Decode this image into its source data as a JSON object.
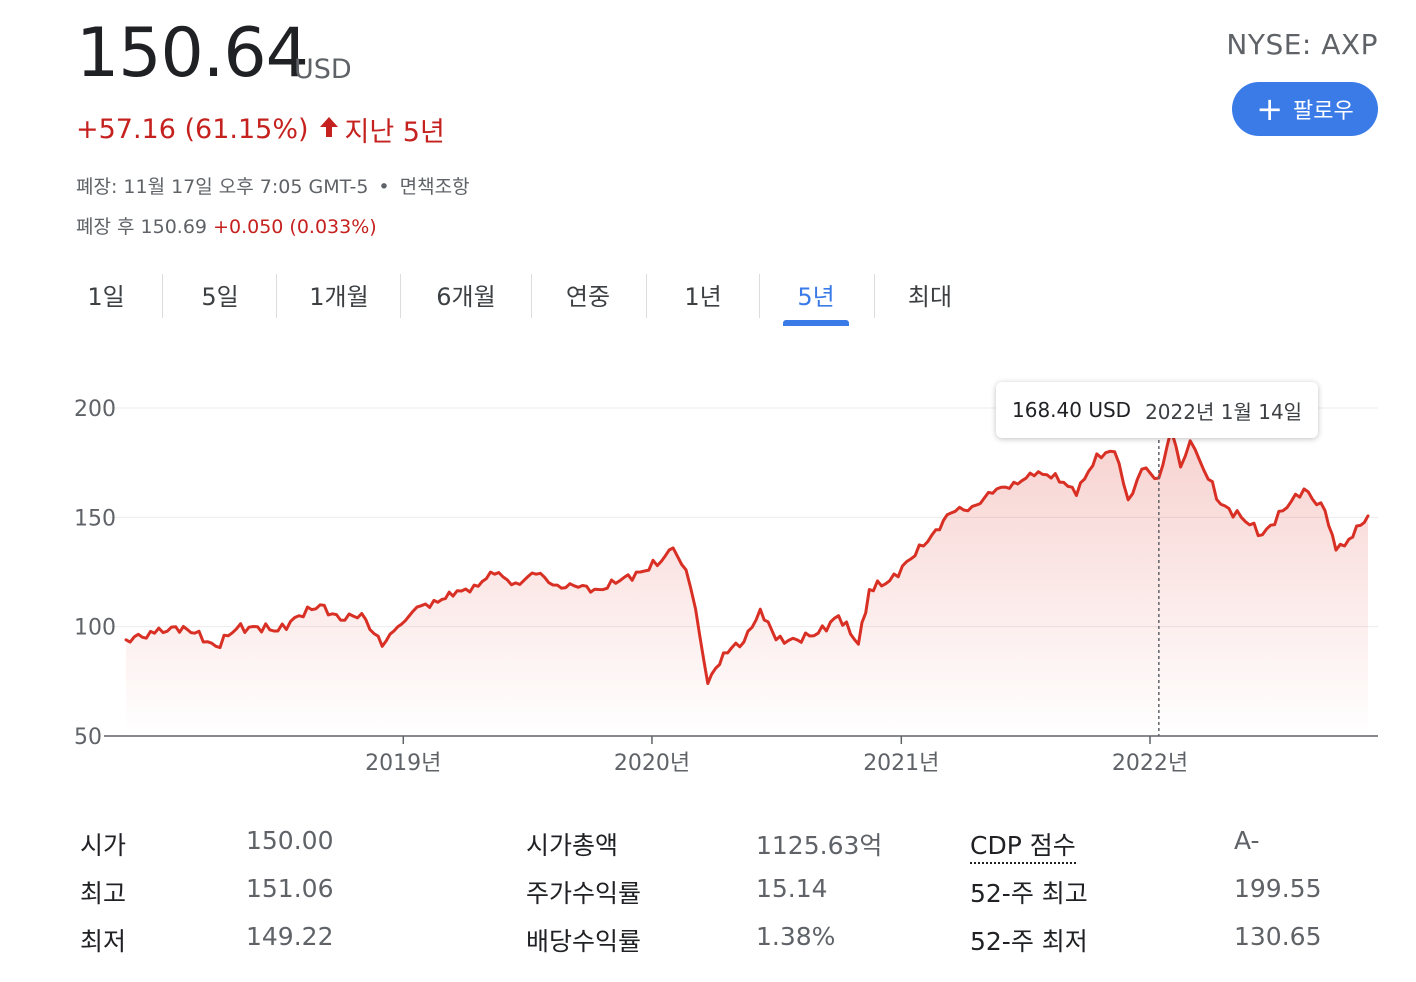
{
  "header": {
    "price": "150.64",
    "currency": "USD",
    "exchange_ticker": "NYSE: AXP",
    "follow_label": "팔로우",
    "change_text": "+57.16 (61.15%)",
    "change_period": "지난 5년",
    "close_info": "폐장: 11월 17일 오후 7:05 GMT-5",
    "disclaimer": "면책조항",
    "after_hours_label": "폐장 후 150.69",
    "after_hours_change": "+0.050 (0.033%)"
  },
  "tabs": [
    {
      "label": "1일"
    },
    {
      "label": "5일"
    },
    {
      "label": "1개월"
    },
    {
      "label": "6개월"
    },
    {
      "label": "연중"
    },
    {
      "label": "1년"
    },
    {
      "label": "5년",
      "active": true
    },
    {
      "label": "최대"
    }
  ],
  "tooltip": {
    "price": "168.40 USD",
    "date": "2022년 1월 14일"
  },
  "chart_data": {
    "type": "area",
    "y_ticks": [
      "200",
      "150",
      "100",
      "50"
    ],
    "x_ticks": [
      "2019년",
      "2020년",
      "2021년",
      "2022년"
    ],
    "ylim": [
      50,
      200
    ],
    "x": [
      "2017-11-20",
      "2018-01-01",
      "2018-02-01",
      "2018-03-01",
      "2018-04-01",
      "2018-05-01",
      "2018-06-01",
      "2018-07-01",
      "2018-08-01",
      "2018-09-01",
      "2018-10-01",
      "2018-11-01",
      "2018-12-01",
      "2018-12-24",
      "2019-01-15",
      "2019-02-15",
      "2019-03-15",
      "2019-04-15",
      "2019-05-15",
      "2019-06-15",
      "2019-07-15",
      "2019-08-15",
      "2019-09-15",
      "2019-10-15",
      "2019-11-15",
      "2019-12-15",
      "2020-01-15",
      "2020-02-01",
      "2020-02-20",
      "2020-03-05",
      "2020-03-23",
      "2020-04-15",
      "2020-05-15",
      "2020-06-08",
      "2020-07-01",
      "2020-08-01",
      "2020-09-01",
      "2020-10-01",
      "2020-10-30",
      "2020-11-15",
      "2020-12-15",
      "2021-01-15",
      "2021-02-15",
      "2021-03-15",
      "2021-04-15",
      "2021-05-15",
      "2021-06-15",
      "2021-07-15",
      "2021-08-15",
      "2021-09-15",
      "2021-10-15",
      "2021-11-10",
      "2021-11-30",
      "2021-12-20",
      "2022-01-14",
      "2022-02-01",
      "2022-02-15",
      "2022-03-01",
      "2022-03-15",
      "2022-04-15",
      "2022-05-15",
      "2022-06-15",
      "2022-07-15",
      "2022-08-15",
      "2022-09-15",
      "2022-10-01",
      "2022-10-20",
      "2022-11-17"
    ],
    "values": [
      94,
      97,
      100,
      97,
      91,
      99,
      100,
      98,
      105,
      110,
      103,
      106,
      91,
      100,
      107,
      112,
      114,
      119,
      124,
      120,
      124,
      119,
      118,
      117,
      121,
      125,
      130,
      136,
      126,
      108,
      74,
      88,
      93,
      108,
      94,
      94,
      97,
      105,
      92,
      117,
      121,
      131,
      142,
      152,
      155,
      161,
      166,
      169,
      170,
      160,
      179,
      180,
      158,
      172,
      168,
      190,
      173,
      185,
      176,
      156,
      150,
      142,
      153,
      163,
      153,
      135,
      140,
      150.64
    ],
    "series": [
      {
        "color": "#d93025"
      }
    ]
  }
}
